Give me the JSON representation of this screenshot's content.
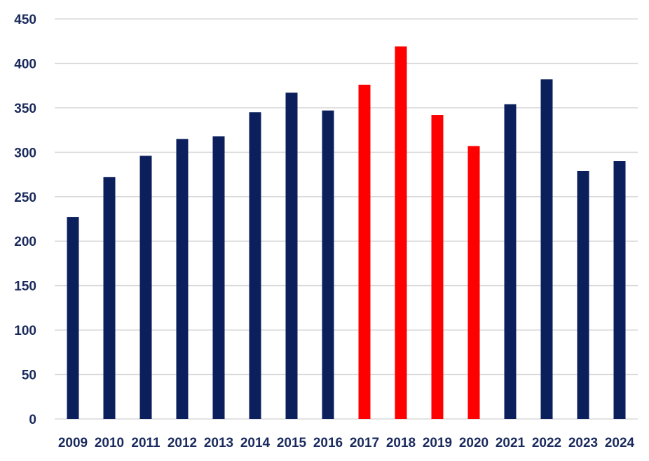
{
  "chart_data": {
    "type": "bar",
    "title": "",
    "xlabel": "",
    "ylabel": "",
    "categories": [
      "2009",
      "2010",
      "2011",
      "2012",
      "2013",
      "2014",
      "2015",
      "2016",
      "2017",
      "2018",
      "2019",
      "2020",
      "2021",
      "2022",
      "2023",
      "2024"
    ],
    "values": [
      227,
      272,
      296,
      315,
      318,
      345,
      367,
      347,
      376,
      419,
      342,
      307,
      354,
      382,
      279,
      290
    ],
    "highlighted": [
      "2017",
      "2018",
      "2019",
      "2020"
    ],
    "colors": {
      "default": "#0b1f5c",
      "highlight": "#ff0000"
    },
    "ylim": [
      0,
      450
    ],
    "yticks": [
      0,
      50,
      100,
      150,
      200,
      250,
      300,
      350,
      400,
      450
    ],
    "grid": true,
    "legend": "none"
  }
}
